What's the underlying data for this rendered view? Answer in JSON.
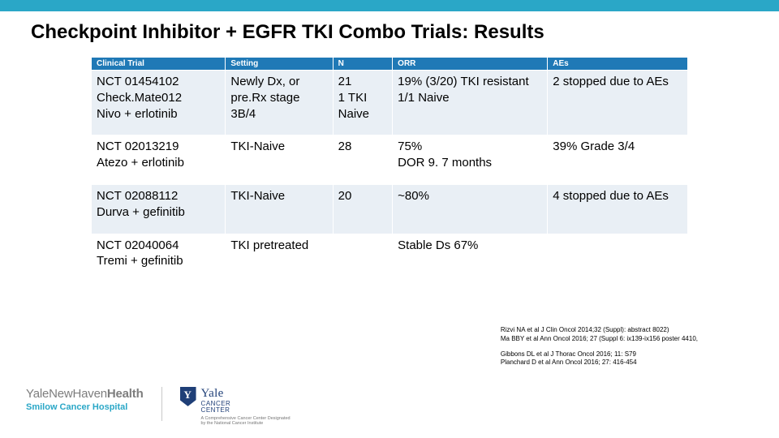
{
  "colors": {
    "topbar": "#2aa7c7",
    "header_bg": "#1f79b6",
    "row_alt_bg": "#e9eff5",
    "row_bg": "#ffffff",
    "smilow": "#2aa7c7"
  },
  "title": "Checkpoint Inhibitor + EGFR TKI Combo Trials: Results",
  "table": {
    "columns": [
      "Clinical Trial",
      "Setting",
      "N",
      "ORR",
      "AEs"
    ],
    "rows": [
      {
        "trial": "NCT 01454102\nCheck.Mate012\nNivo + erlotinib",
        "setting": "Newly Dx, or pre.Rx stage 3B/4",
        "n": "21\n1 TKI Naive",
        "orr": "19% (3/20) TKI resistant\n1/1 Naive",
        "aes": "2 stopped due to AEs"
      },
      {
        "trial": "NCT 02013219\nAtezo + erlotinib",
        "setting": "TKI-Naive",
        "n": "28",
        "orr": "75%\nDOR 9. 7 months",
        "aes": "39% Grade 3/4"
      },
      {
        "trial": "NCT 02088112\nDurva + gefinitib",
        "setting": "TKI-Naive",
        "n": "20",
        "orr": "~80%",
        "aes": "4 stopped due to AEs"
      },
      {
        "trial": "NCT 02040064\nTremi + gefinitib",
        "setting": "TKI pretreated",
        "n": "",
        "orr": "Stable Ds 67%",
        "aes": ""
      }
    ]
  },
  "references": {
    "block1": [
      "Rizvi NA et al J Clin Oncol 2014;32 (Suppl): abstract 8022)",
      "Ma BBY et al Ann Oncol 2016; 27 (Suppl 6: ix139-ix156 poster 4410,"
    ],
    "block2": [
      "Gibbons DL et al J Thorac Oncol 2016; 11: S79",
      "Planchard D et al Ann Oncol 2016; 27: 416-454"
    ]
  },
  "footer": {
    "ynhh_yale": "Yale",
    "ynhh_nh": "NewHaven",
    "ynhh_health": "Health",
    "smilow": "Smilow Cancer Hospital",
    "ycc_yale": "Yale",
    "ycc_cancer": "CANCER",
    "ycc_center": "CENTER",
    "ycc_sub1": "A Comprehensive Cancer Center Designated",
    "ycc_sub2": "by the National Cancer Institute"
  }
}
